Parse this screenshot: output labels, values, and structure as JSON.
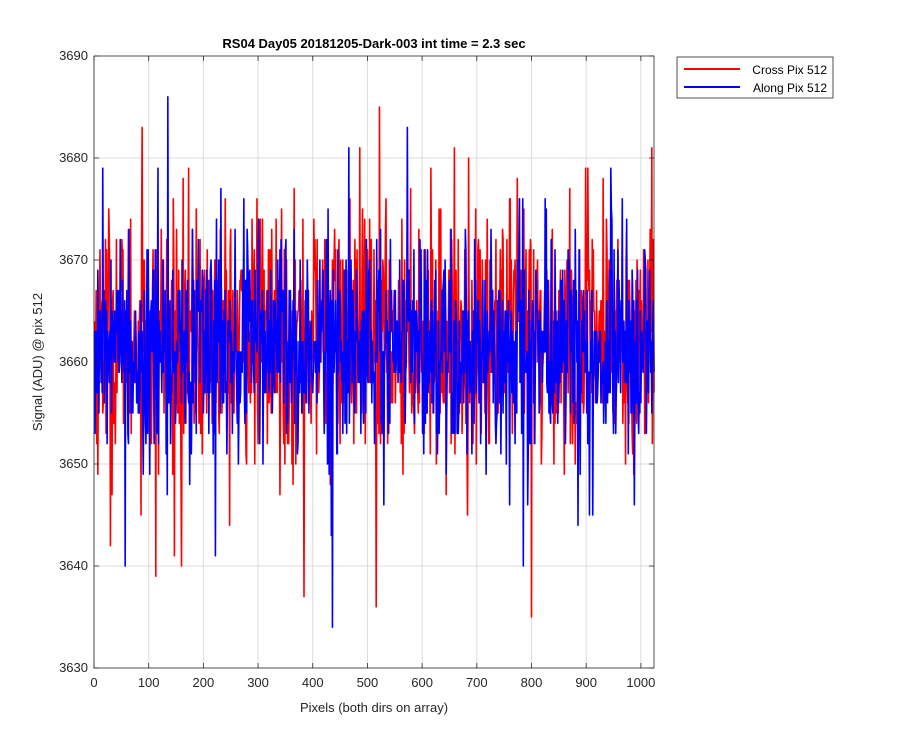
{
  "chart_data": {
    "type": "line",
    "title": "RS04 Day05 20181205-Dark-003 int time = 2.3 sec",
    "xlabel": "Pixels (both dirs on array)",
    "ylabel": "Signal (ADU) @ pix 512",
    "xlim": [
      0,
      1024
    ],
    "ylim": [
      3630,
      3690
    ],
    "xticks": [
      0,
      100,
      200,
      300,
      400,
      500,
      600,
      700,
      800,
      900,
      1000
    ],
    "yticks": [
      3630,
      3640,
      3650,
      3660,
      3670,
      3680,
      3690
    ],
    "grid": true,
    "legend_position": "outside-top-right",
    "series": [
      {
        "name": "Cross Pix 512",
        "color": "#ff0000",
        "x_start": 1,
        "x_step": 1,
        "mean": 3662.5,
        "std": 6.2,
        "extremes": [
          {
            "x": 88,
            "y": 3683
          },
          {
            "x": 113,
            "y": 3639
          },
          {
            "x": 160,
            "y": 3640
          },
          {
            "x": 384,
            "y": 3637
          },
          {
            "x": 516,
            "y": 3636
          },
          {
            "x": 522,
            "y": 3685
          },
          {
            "x": 800,
            "y": 3635
          },
          {
            "x": 1020,
            "y": 3681
          },
          {
            "x": 30,
            "y": 3642
          }
        ]
      },
      {
        "name": "Along Pix 512",
        "color": "#0000ff",
        "x_start": 1,
        "x_step": 1,
        "mean": 3661.5,
        "std": 5.6,
        "extremes": [
          {
            "x": 135,
            "y": 3686
          },
          {
            "x": 57,
            "y": 3640
          },
          {
            "x": 436,
            "y": 3634
          },
          {
            "x": 573,
            "y": 3683
          },
          {
            "x": 16,
            "y": 3679
          },
          {
            "x": 785,
            "y": 3640
          },
          {
            "x": 945,
            "y": 3679
          },
          {
            "x": 222,
            "y": 3641
          }
        ]
      }
    ]
  }
}
